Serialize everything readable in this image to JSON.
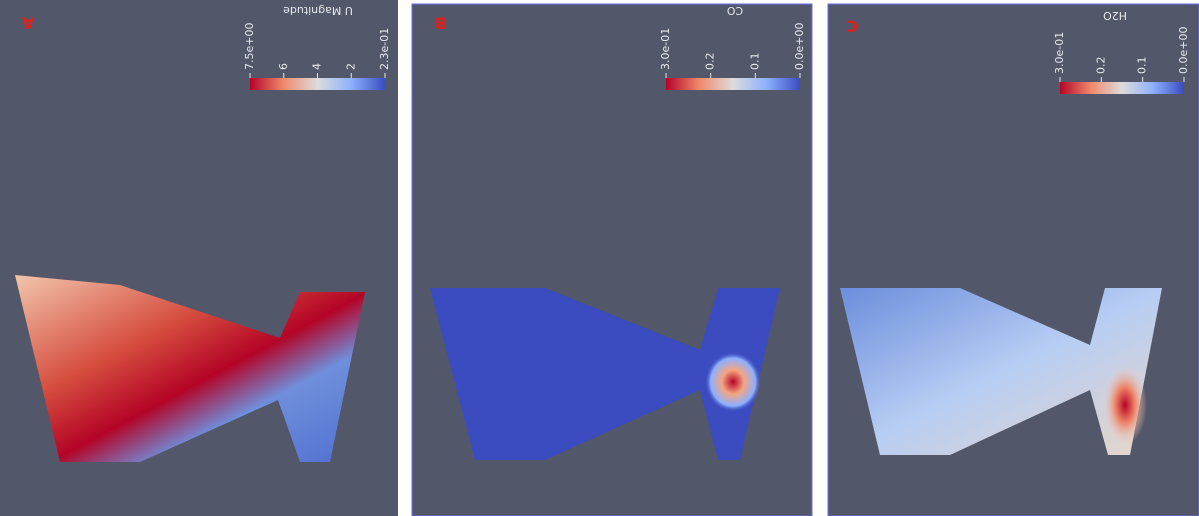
{
  "panels": [
    {
      "label": "A",
      "colorbar": {
        "title": "U Magnitude",
        "ticks": [
          "7.5e+00",
          "6",
          "4",
          "2",
          "2.3e-01"
        ]
      }
    },
    {
      "label": "B",
      "colorbar": {
        "title": "CO",
        "ticks": [
          "3.0e-01",
          "0.2",
          "0.1",
          "0.0e+00"
        ]
      }
    },
    {
      "label": "C",
      "colorbar": {
        "title": "H2O",
        "ticks": [
          "3.0e-01",
          "0.2",
          "0.1",
          "0.0e+00"
        ]
      }
    }
  ]
}
